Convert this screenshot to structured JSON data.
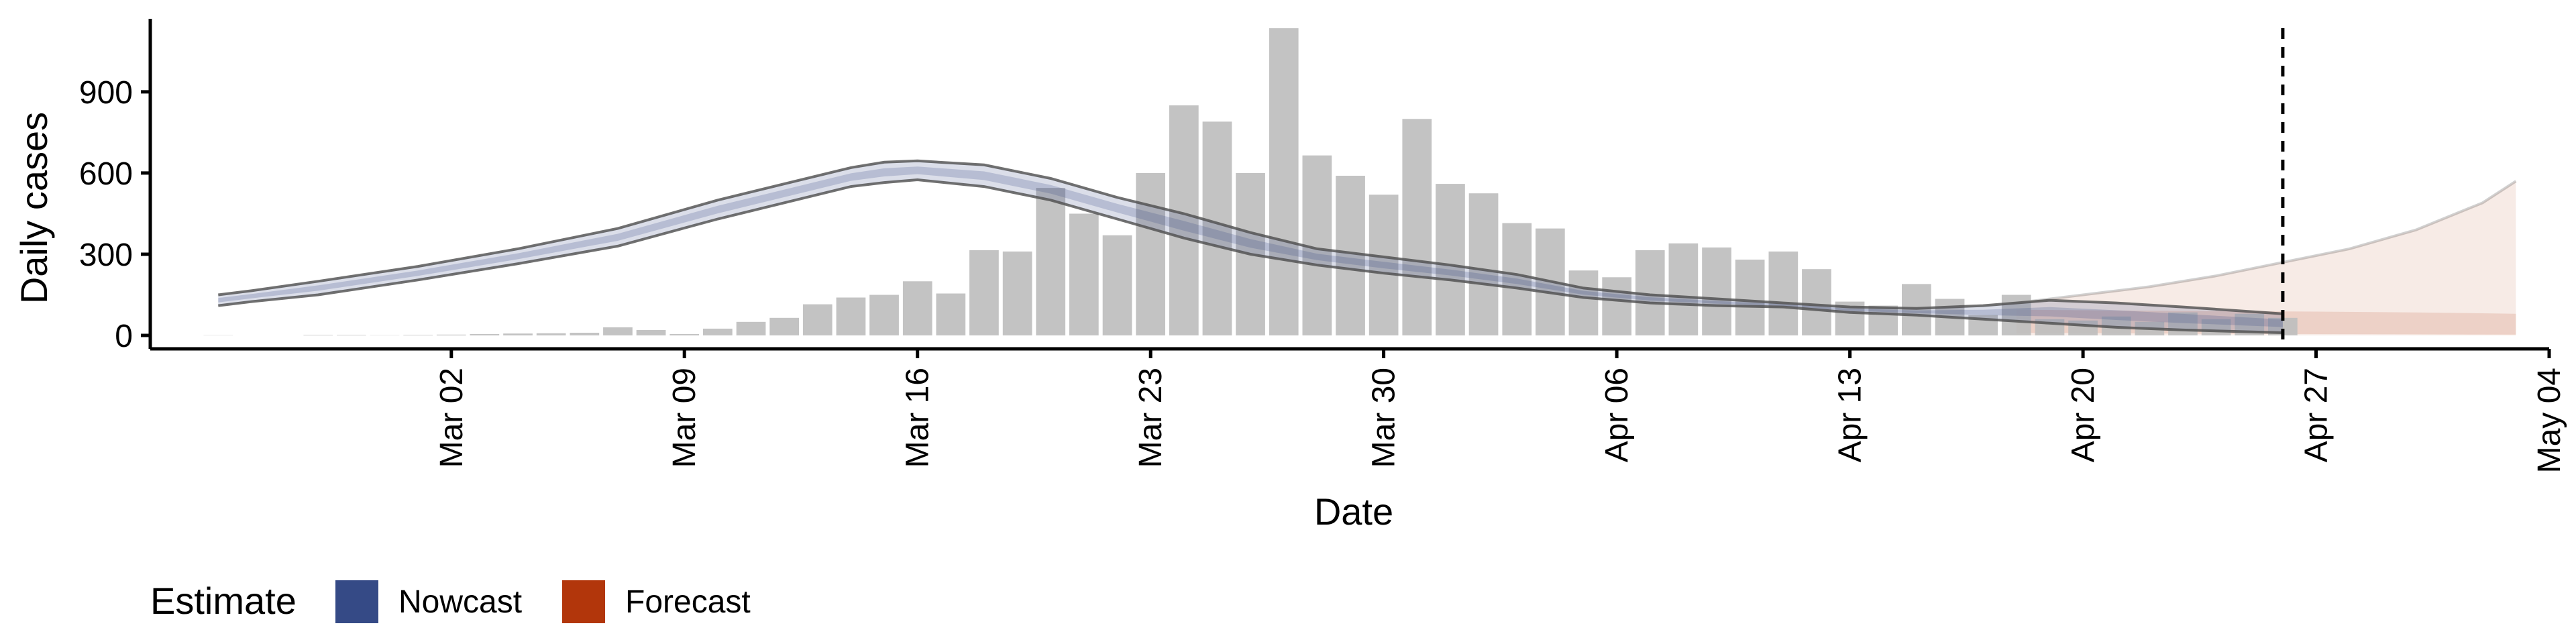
{
  "chart_data": {
    "type": "bar",
    "xlabel": "Date",
    "ylabel": "Daily cases",
    "x_range": [
      "2020-02-22",
      "2020-05-04"
    ],
    "ylim": [
      0,
      1170
    ],
    "x_ticks": [
      {
        "date": "2020-03-02",
        "label": "Mar 02"
      },
      {
        "date": "2020-03-09",
        "label": "Mar 09"
      },
      {
        "date": "2020-03-16",
        "label": "Mar 16"
      },
      {
        "date": "2020-03-23",
        "label": "Mar 23"
      },
      {
        "date": "2020-03-30",
        "label": "Mar 30"
      },
      {
        "date": "2020-04-06",
        "label": "Apr 06"
      },
      {
        "date": "2020-04-13",
        "label": "Apr 13"
      },
      {
        "date": "2020-04-20",
        "label": "Apr 20"
      },
      {
        "date": "2020-04-27",
        "label": "Apr 27"
      },
      {
        "date": "2020-05-04",
        "label": "May 04"
      }
    ],
    "y_ticks": [
      0,
      300,
      600,
      900
    ],
    "reference_line_date": "2020-04-26",
    "legend": {
      "title": "Estimate",
      "position": "bottom-left",
      "entries": [
        {
          "label": "Nowcast",
          "color": "#354a86"
        },
        {
          "label": "Forecast",
          "color": "#b2360b"
        }
      ]
    },
    "bars": {
      "color": "#bebebe",
      "dates": [
        "2020-02-24",
        "2020-02-25",
        "2020-02-26",
        "2020-02-27",
        "2020-02-28",
        "2020-02-29",
        "2020-03-01",
        "2020-03-02",
        "2020-03-03",
        "2020-03-04",
        "2020-03-05",
        "2020-03-06",
        "2020-03-07",
        "2020-03-08",
        "2020-03-09",
        "2020-03-10",
        "2020-03-11",
        "2020-03-12",
        "2020-03-13",
        "2020-03-14",
        "2020-03-15",
        "2020-03-16",
        "2020-03-17",
        "2020-03-18",
        "2020-03-19",
        "2020-03-20",
        "2020-03-21",
        "2020-03-22",
        "2020-03-23",
        "2020-03-24",
        "2020-03-25",
        "2020-03-26",
        "2020-03-27",
        "2020-03-28",
        "2020-03-29",
        "2020-03-30",
        "2020-03-31",
        "2020-04-01",
        "2020-04-02",
        "2020-04-03",
        "2020-04-04",
        "2020-04-05",
        "2020-04-06",
        "2020-04-07",
        "2020-04-08",
        "2020-04-09",
        "2020-04-10",
        "2020-04-11",
        "2020-04-12",
        "2020-04-13",
        "2020-04-14",
        "2020-04-15",
        "2020-04-16",
        "2020-04-17",
        "2020-04-18",
        "2020-04-19",
        "2020-04-20",
        "2020-04-21",
        "2020-04-22",
        "2020-04-23",
        "2020-04-24",
        "2020-04-25",
        "2020-04-26"
      ],
      "values": [
        1,
        0,
        0,
        2,
        2,
        1,
        2,
        3,
        5,
        7,
        8,
        10,
        30,
        20,
        5,
        25,
        50,
        65,
        115,
        140,
        150,
        200,
        155,
        315,
        310,
        545,
        450,
        370,
        600,
        850,
        790,
        600,
        1135,
        665,
        590,
        520,
        800,
        560,
        525,
        415,
        395,
        240,
        215,
        315,
        340,
        325,
        280,
        310,
        245,
        125,
        110,
        190,
        135,
        75,
        150,
        60,
        55,
        70,
        50,
        85,
        60,
        80,
        65
      ]
    },
    "nowcast": {
      "color": "#354a86",
      "dates": [
        "2020-02-24",
        "2020-02-25",
        "2020-02-27",
        "2020-03-01",
        "2020-03-04",
        "2020-03-07",
        "2020-03-10",
        "2020-03-12",
        "2020-03-14",
        "2020-03-15",
        "2020-03-16",
        "2020-03-18",
        "2020-03-20",
        "2020-03-22",
        "2020-03-24",
        "2020-03-26",
        "2020-03-28",
        "2020-03-30",
        "2020-04-01",
        "2020-04-03",
        "2020-04-05",
        "2020-04-07",
        "2020-04-09",
        "2020-04-11",
        "2020-04-13",
        "2020-04-15",
        "2020-04-17",
        "2020-04-19",
        "2020-04-21",
        "2020-04-23",
        "2020-04-26"
      ],
      "lower": [
        110,
        125,
        150,
        205,
        265,
        330,
        430,
        490,
        550,
        565,
        575,
        550,
        500,
        430,
        360,
        300,
        260,
        230,
        205,
        175,
        140,
        120,
        110,
        105,
        85,
        75,
        60,
        45,
        30,
        20,
        10
      ],
      "upper": [
        150,
        165,
        200,
        255,
        320,
        395,
        500,
        560,
        620,
        640,
        645,
        630,
        580,
        510,
        450,
        380,
        320,
        290,
        260,
        225,
        175,
        150,
        135,
        120,
        105,
        100,
        110,
        130,
        120,
        105,
        80
      ]
    },
    "forecast": {
      "color": "#b2360b",
      "outer_dates": [
        "2020-04-18",
        "2020-04-20",
        "2020-04-22",
        "2020-04-24",
        "2020-04-26",
        "2020-04-28",
        "2020-04-30",
        "2020-05-02",
        "2020-05-03"
      ],
      "outer_lower": [
        0,
        0,
        0,
        0,
        0,
        0,
        0,
        0,
        0
      ],
      "outer_upper": [
        120,
        150,
        180,
        220,
        270,
        320,
        390,
        490,
        570
      ],
      "inner_dates": [
        "2020-04-18",
        "2020-04-21",
        "2020-04-24",
        "2020-04-27",
        "2020-04-30",
        "2020-05-03"
      ],
      "inner_lower": [
        10,
        8,
        6,
        5,
        4,
        3
      ],
      "inner_upper": [
        95,
        92,
        90,
        88,
        85,
        80
      ]
    }
  }
}
